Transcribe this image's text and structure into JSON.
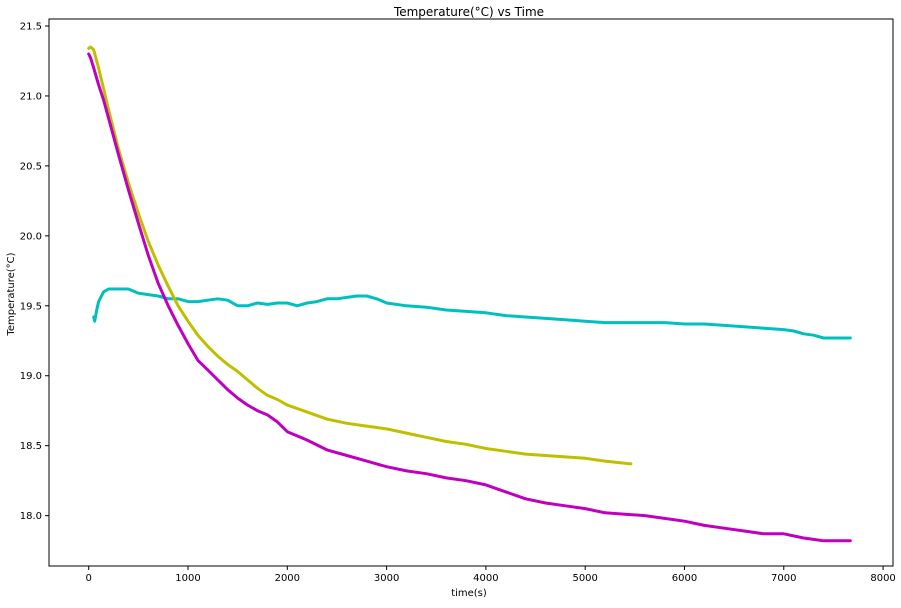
{
  "chart_data": {
    "type": "line",
    "title": "Temperature(°C) vs Time",
    "xlabel": "time(s)",
    "ylabel": "Temperature(°C)",
    "xlim": [
      -400,
      8100
    ],
    "ylim": [
      17.64,
      21.55
    ],
    "grid": false,
    "legend": "none",
    "xticks": [
      {
        "value": 0,
        "label": "0"
      },
      {
        "value": 1000,
        "label": "1000"
      },
      {
        "value": 2000,
        "label": "2000"
      },
      {
        "value": 3000,
        "label": "3000"
      },
      {
        "value": 4000,
        "label": "4000"
      },
      {
        "value": 5000,
        "label": "5000"
      },
      {
        "value": 6000,
        "label": "6000"
      },
      {
        "value": 7000,
        "label": "7000"
      },
      {
        "value": 8000,
        "label": "8000"
      }
    ],
    "yticks": [
      {
        "value": 18.0,
        "label": "18.0"
      },
      {
        "value": 18.5,
        "label": "18.5"
      },
      {
        "value": 19.0,
        "label": "19.0"
      },
      {
        "value": 19.5,
        "label": "19.5"
      },
      {
        "value": 20.0,
        "label": "20.0"
      },
      {
        "value": 20.5,
        "label": "20.5"
      },
      {
        "value": 21.0,
        "label": "21.0"
      },
      {
        "value": 21.5,
        "label": "21.5"
      }
    ],
    "series": [
      {
        "color": "#00bfbf",
        "x": [
          50,
          60,
          80,
          100,
          150,
          200,
          300,
          400,
          500,
          600,
          700,
          800,
          900,
          1000,
          1100,
          1200,
          1300,
          1400,
          1500,
          1600,
          1700,
          1800,
          1900,
          2000,
          2100,
          2200,
          2300,
          2400,
          2500,
          2600,
          2700,
          2800,
          2900,
          3000,
          3200,
          3400,
          3600,
          3800,
          4000,
          4200,
          4400,
          4600,
          4800,
          5000,
          5200,
          5400,
          5600,
          5800,
          6000,
          6200,
          6400,
          6600,
          6800,
          7000,
          7100,
          7200,
          7300,
          7400,
          7500,
          7600,
          7670
        ],
        "y": [
          19.42,
          19.39,
          19.47,
          19.53,
          19.6,
          19.62,
          19.62,
          19.62,
          19.59,
          19.58,
          19.57,
          19.55,
          19.55,
          19.53,
          19.53,
          19.54,
          19.55,
          19.54,
          19.5,
          19.5,
          19.52,
          19.51,
          19.52,
          19.52,
          19.5,
          19.52,
          19.53,
          19.55,
          19.55,
          19.56,
          19.57,
          19.57,
          19.55,
          19.52,
          19.5,
          19.49,
          19.47,
          19.46,
          19.45,
          19.43,
          19.42,
          19.41,
          19.4,
          19.39,
          19.38,
          19.38,
          19.38,
          19.38,
          19.37,
          19.37,
          19.36,
          19.35,
          19.34,
          19.33,
          19.32,
          19.3,
          19.29,
          19.27,
          19.27,
          19.27,
          19.27
        ]
      },
      {
        "color": "#bfbf00",
        "x": [
          0,
          20,
          50,
          80,
          100,
          150,
          200,
          300,
          400,
          500,
          600,
          700,
          800,
          900,
          1000,
          1100,
          1200,
          1300,
          1400,
          1500,
          1600,
          1700,
          1800,
          1900,
          2000,
          2200,
          2400,
          2600,
          2800,
          3000,
          3200,
          3400,
          3600,
          3800,
          4000,
          4200,
          4400,
          4600,
          4800,
          5000,
          5200,
          5460
        ],
        "y": [
          21.34,
          21.35,
          21.33,
          21.25,
          21.2,
          21.05,
          20.9,
          20.62,
          20.38,
          20.16,
          19.96,
          19.79,
          19.64,
          19.5,
          19.39,
          19.29,
          19.21,
          19.14,
          19.08,
          19.03,
          18.97,
          18.91,
          18.86,
          18.83,
          18.79,
          18.74,
          18.69,
          18.66,
          18.64,
          18.62,
          18.59,
          18.56,
          18.53,
          18.51,
          18.48,
          18.46,
          18.44,
          18.43,
          18.42,
          18.41,
          18.39,
          18.37
        ]
      },
      {
        "color": "#bf00bf",
        "x": [
          0,
          20,
          50,
          100,
          150,
          200,
          300,
          400,
          500,
          600,
          700,
          800,
          900,
          1000,
          1100,
          1200,
          1300,
          1400,
          1500,
          1600,
          1700,
          1800,
          1900,
          2000,
          2200,
          2400,
          2600,
          2800,
          3000,
          3200,
          3400,
          3600,
          3800,
          4000,
          4200,
          4400,
          4600,
          4800,
          5000,
          5200,
          5400,
          5600,
          5800,
          6000,
          6200,
          6400,
          6600,
          6800,
          7000,
          7200,
          7300,
          7400,
          7500,
          7600,
          7670
        ],
        "y": [
          21.3,
          21.27,
          21.2,
          21.08,
          20.97,
          20.84,
          20.58,
          20.33,
          20.09,
          19.86,
          19.66,
          19.5,
          19.36,
          19.23,
          19.11,
          19.04,
          18.97,
          18.9,
          18.84,
          18.79,
          18.75,
          18.72,
          18.67,
          18.6,
          18.54,
          18.47,
          18.43,
          18.39,
          18.35,
          18.32,
          18.3,
          18.27,
          18.25,
          18.22,
          18.17,
          18.12,
          18.09,
          18.07,
          18.05,
          18.02,
          18.01,
          18.0,
          17.98,
          17.96,
          17.93,
          17.91,
          17.89,
          17.87,
          17.87,
          17.84,
          17.83,
          17.82,
          17.82,
          17.82,
          17.82
        ]
      }
    ]
  }
}
